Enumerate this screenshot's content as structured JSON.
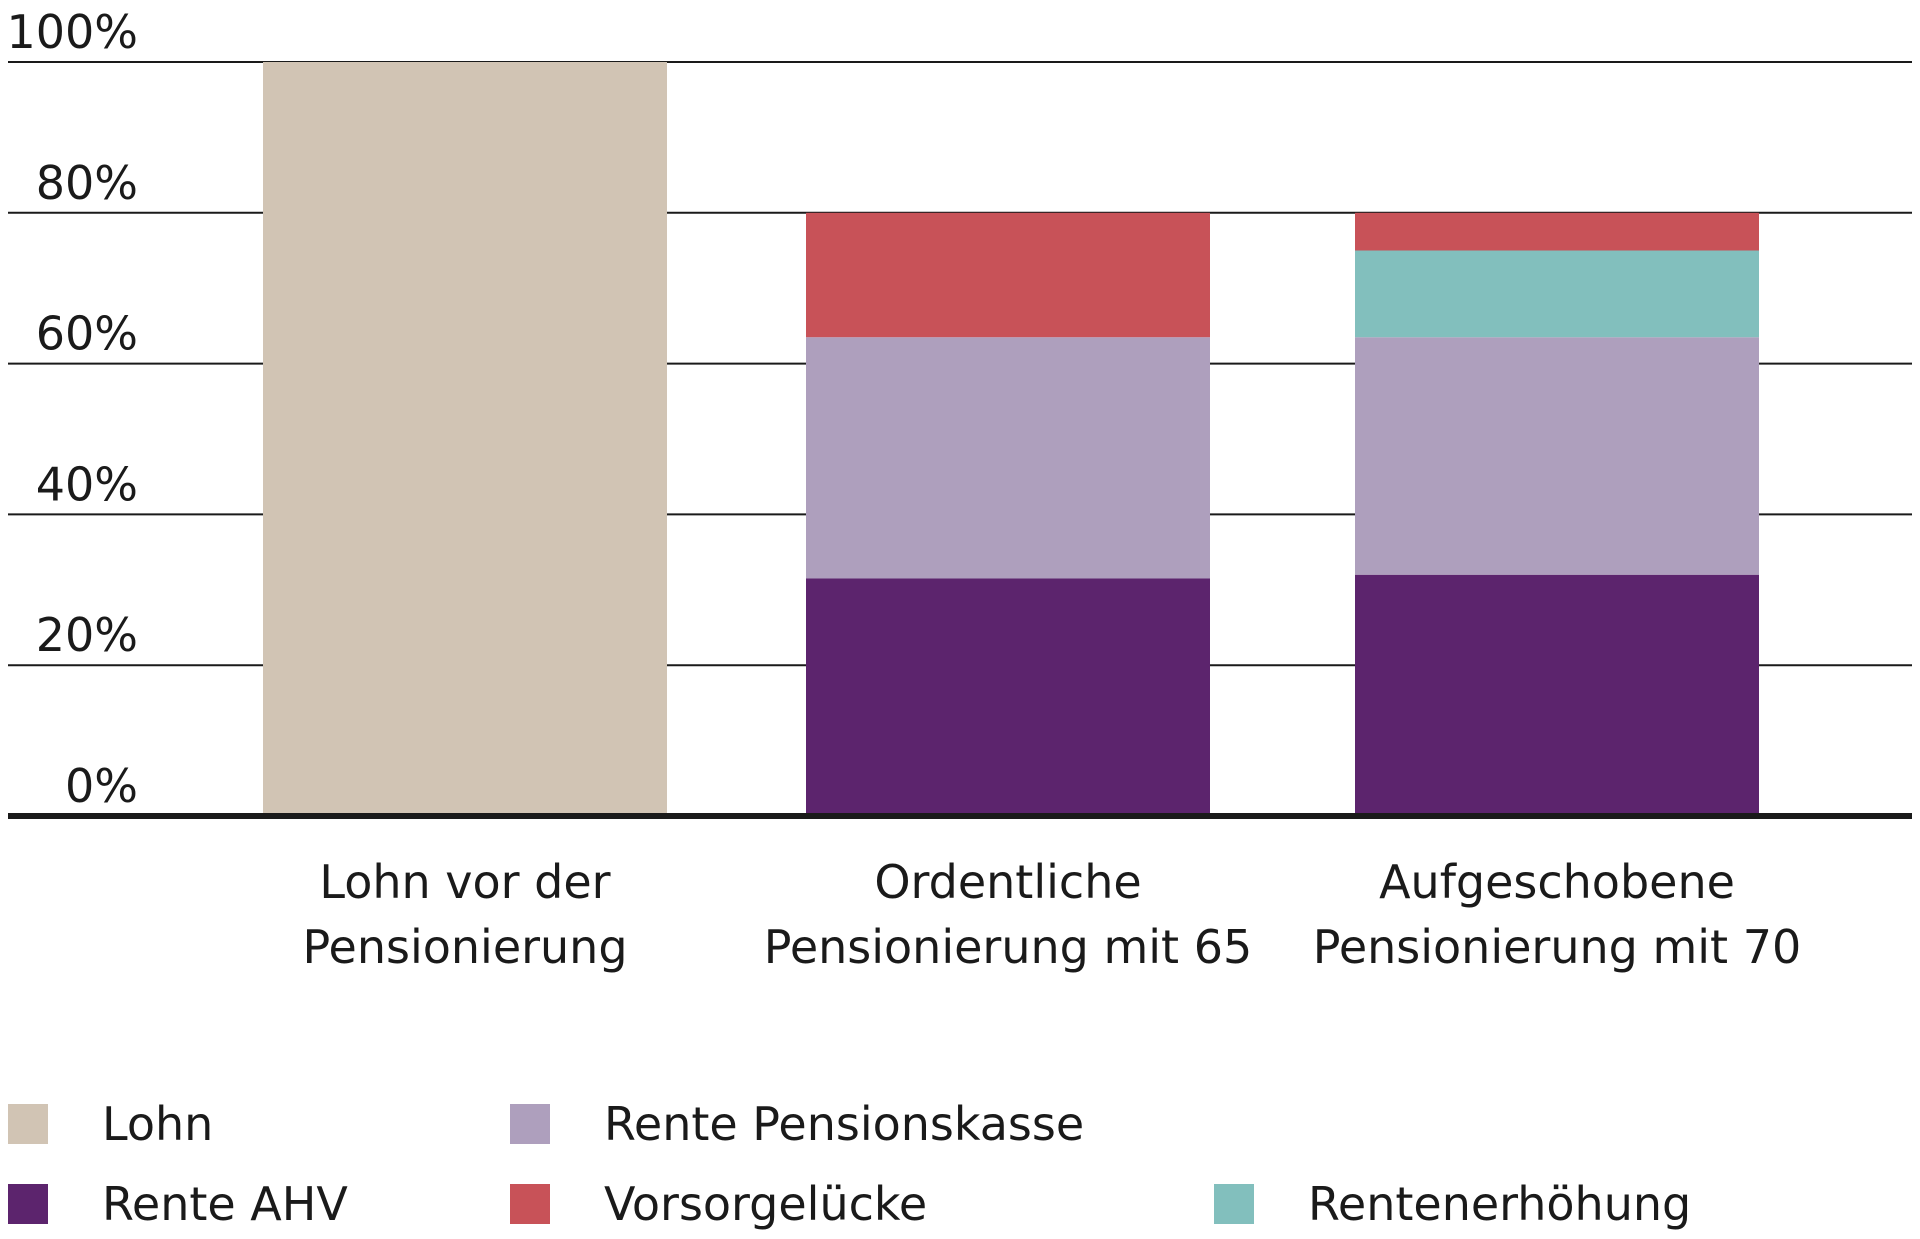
{
  "chart_data": {
    "type": "bar",
    "stacked": true,
    "categories": [
      [
        "Lohn vor der",
        "Pensionierung"
      ],
      [
        "Ordentliche",
        "Pensionierung mit 65"
      ],
      [
        "Aufgeschobene",
        "Pensionierung mit 70"
      ]
    ],
    "series": [
      {
        "name": "Rente AHV",
        "color": "#5c246d",
        "values": [
          0,
          31.5,
          32
        ]
      },
      {
        "name": "Rente Pensionskasse",
        "color": "#ae9fbd",
        "values": [
          0,
          32,
          31.5
        ]
      },
      {
        "name": "Rentenerhöhung",
        "color": "#82bfbd",
        "values": [
          0,
          0,
          11.5
        ]
      },
      {
        "name": "Vorsorgelücke",
        "color": "#c85258",
        "values": [
          0,
          16.5,
          5
        ]
      },
      {
        "name": "Lohn",
        "color": "#d1c4b4",
        "values": [
          100,
          0,
          0
        ]
      }
    ],
    "yticks": [
      "0%",
      "20%",
      "40%",
      "60%",
      "80%",
      "100%"
    ],
    "ylim": [
      0,
      100
    ],
    "grid": true,
    "legend": {
      "placement": "bottom",
      "order": [
        "Lohn",
        "Rente Pensionskasse",
        "Rente AHV",
        "Vorsorgelücke",
        "Rentenerhöhung"
      ]
    }
  }
}
